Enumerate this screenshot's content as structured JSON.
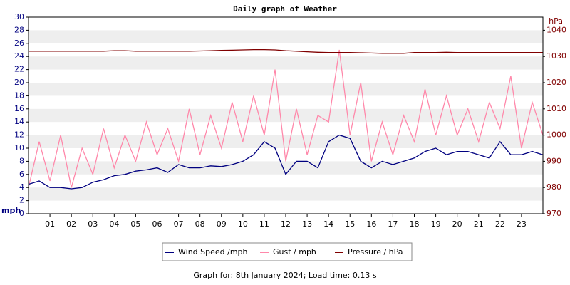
{
  "chart_data": {
    "type": "line",
    "title": "Daily graph of Weather",
    "ylabel": "mph",
    "y2label": "hPa",
    "footer": "Graph for: 8th January 2024; Load time: 0.13 s",
    "x": [
      0,
      0.5,
      1,
      1.5,
      2,
      2.5,
      3,
      3.5,
      4,
      4.5,
      5,
      5.5,
      6,
      6.5,
      7,
      7.5,
      8,
      8.5,
      9,
      9.5,
      10,
      10.5,
      11,
      11.5,
      12,
      12.5,
      13,
      13.5,
      14,
      14.5,
      15,
      15.5,
      16,
      16.5,
      17,
      17.5,
      18,
      18.5,
      19,
      19.5,
      20,
      20.5,
      21,
      21.5,
      22,
      22.5,
      23,
      23.5,
      24
    ],
    "xlim": [
      0,
      24
    ],
    "xticks": [
      {
        "value": 1,
        "label": "01"
      },
      {
        "value": 2,
        "label": "02"
      },
      {
        "value": 3,
        "label": "03"
      },
      {
        "value": 4,
        "label": "04"
      },
      {
        "value": 5,
        "label": "05"
      },
      {
        "value": 6,
        "label": "06"
      },
      {
        "value": 7,
        "label": "07"
      },
      {
        "value": 8,
        "label": "08"
      },
      {
        "value": 9,
        "label": "09"
      },
      10,
      11,
      12,
      13,
      14,
      15,
      16,
      17,
      18,
      19,
      20,
      21,
      22,
      23
    ],
    "ylim": [
      0,
      30
    ],
    "yticks": [
      0,
      2,
      4,
      6,
      8,
      10,
      12,
      14,
      16,
      18,
      20,
      22,
      24,
      26,
      28,
      30
    ],
    "y2lim": [
      970,
      1045
    ],
    "y2ticks": [
      970,
      980,
      990,
      1000,
      1010,
      1020,
      1030,
      1040
    ],
    "grid": true,
    "series": [
      {
        "name": "Wind Speed /mph",
        "color": "#000080",
        "values": [
          4.5,
          5,
          4,
          4,
          3.8,
          4,
          4.8,
          5.2,
          5.8,
          6,
          6.5,
          6.7,
          7,
          6.3,
          7.5,
          7,
          7,
          7.3,
          7.2,
          7.5,
          8,
          9,
          11,
          10,
          6,
          8,
          8,
          7,
          11,
          12,
          11.5,
          8,
          7,
          8,
          7.5,
          8,
          8.5,
          9.5,
          10,
          9,
          9.5,
          9.5,
          9,
          8.5,
          11,
          9,
          9,
          9.5,
          9
        ]
      },
      {
        "name": "Gust / mph",
        "color": "#ff88aa",
        "values": [
          4,
          11,
          5,
          12,
          4,
          10,
          6,
          13,
          7,
          12,
          8,
          14,
          9,
          13,
          8,
          16,
          9,
          15,
          10,
          17,
          11,
          18,
          12,
          22,
          8,
          16,
          9,
          15,
          14,
          25,
          12,
          20,
          8,
          14,
          9,
          15,
          11,
          19,
          12,
          18,
          12,
          16,
          11,
          17,
          13,
          21,
          10,
          17,
          12
        ]
      },
      {
        "name": "Pressure / hPa",
        "color": "#800000",
        "axis": "y2",
        "values": [
          1032,
          1032,
          1032,
          1032,
          1032,
          1032,
          1032,
          1032,
          1032.2,
          1032.2,
          1032,
          1032,
          1032,
          1032,
          1032,
          1032,
          1032.1,
          1032.2,
          1032.3,
          1032.4,
          1032.5,
          1032.6,
          1032.6,
          1032.5,
          1032.2,
          1032,
          1031.8,
          1031.6,
          1031.5,
          1031.5,
          1031.5,
          1031.4,
          1031.3,
          1031.2,
          1031.2,
          1031.2,
          1031.5,
          1031.5,
          1031.5,
          1031.6,
          1031.5,
          1031.5,
          1031.5,
          1031.5,
          1031.5,
          1031.5,
          1031.5,
          1031.5,
          1031.5
        ]
      }
    ]
  }
}
